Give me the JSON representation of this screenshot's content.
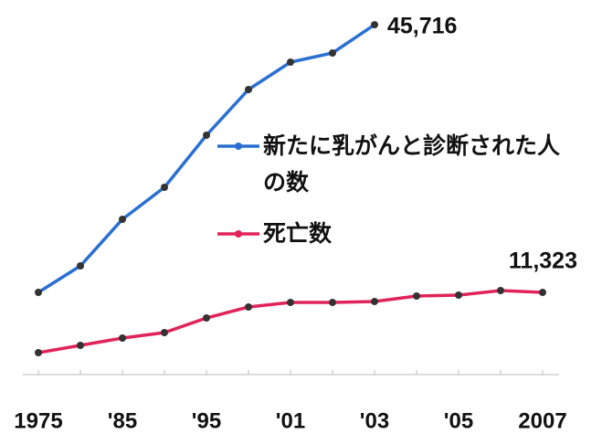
{
  "chart_data": {
    "type": "line",
    "categories": [
      "1975",
      null,
      "'85",
      null,
      "'95",
      null,
      "'01",
      null,
      "'03",
      null,
      "'05",
      null,
      "2007"
    ],
    "series": [
      {
        "name": "新たに乳がんと診断された人の数",
        "color": "#2a6fd1",
        "values": [
          11329,
          14734,
          20721,
          24830,
          31522,
          37392,
          40914,
          42088,
          45716,
          null,
          null,
          null,
          null
        ],
        "value_labels": [
          null,
          null,
          null,
          null,
          null,
          null,
          null,
          null,
          "45,716",
          null,
          null,
          null,
          null
        ]
      },
      {
        "name": "死亡数",
        "color": "#e0245a",
        "values": [
          3581,
          4520,
          5459,
          6164,
          8042,
          9451,
          10038,
          10038,
          10155,
          10860,
          10977,
          11564,
          11323
        ],
        "value_labels": [
          null,
          null,
          null,
          null,
          null,
          null,
          null,
          null,
          null,
          null,
          null,
          null,
          "11,323"
        ]
      }
    ]
  }
}
